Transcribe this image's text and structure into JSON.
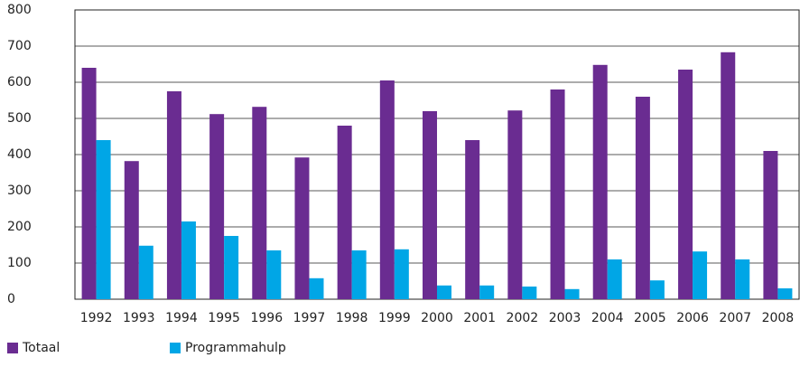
{
  "chart_data": {
    "type": "bar",
    "categories": [
      "1992",
      "1993",
      "1994",
      "1995",
      "1996",
      "1997",
      "1998",
      "1999",
      "2000",
      "2001",
      "2002",
      "2003",
      "2004",
      "2005",
      "2006",
      "2007",
      "2008"
    ],
    "series": [
      {
        "name": "Totaal",
        "color": "#6a2c91",
        "values": [
          640,
          382,
          575,
          512,
          532,
          392,
          480,
          605,
          520,
          440,
          522,
          580,
          648,
          560,
          635,
          683,
          410
        ]
      },
      {
        "name": "Programmahulp",
        "color": "#00a6e6",
        "values": [
          440,
          148,
          215,
          175,
          135,
          58,
          135,
          138,
          38,
          38,
          35,
          28,
          110,
          52,
          132,
          110,
          30
        ]
      }
    ],
    "ylim": [
      0,
      800
    ],
    "yticks": [
      0,
      100,
      200,
      300,
      400,
      500,
      600,
      700,
      800
    ],
    "grid": true,
    "legend": "bottom-left"
  }
}
